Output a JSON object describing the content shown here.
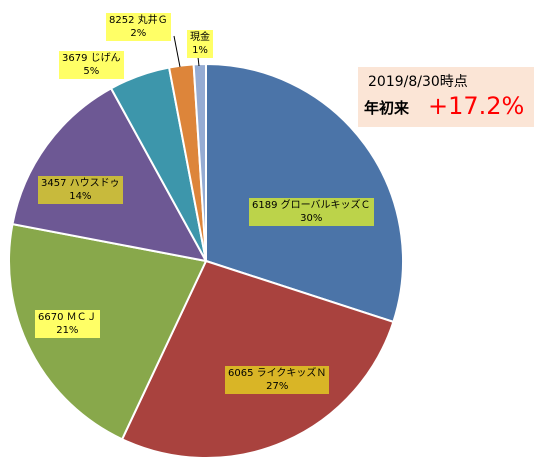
{
  "chart_data": {
    "type": "pie",
    "slices": [
      {
        "name": "6189 グローバルキッズＣ",
        "value": 30,
        "label": "30%",
        "color": "#4b74a8"
      },
      {
        "name": "6065 ライクキッズＮ",
        "value": 27,
        "label": "27%",
        "color": "#a9423e"
      },
      {
        "name": "6670 ＭＣＪ",
        "value": 21,
        "label": "21%",
        "color": "#88a84b"
      },
      {
        "name": "3457 ハウスドゥ",
        "value": 14,
        "label": "14%",
        "color": "#6d5894"
      },
      {
        "name": "3679 じげん",
        "value": 5,
        "label": "5%",
        "color": "#3d96ab"
      },
      {
        "name": "8252 丸井Ｇ",
        "value": 2,
        "label": "2%",
        "color": "#dd853a"
      },
      {
        "name": "現金",
        "value": 1,
        "label": "1%",
        "color": "#96acd3"
      }
    ],
    "label_colors": [
      "#bcd34a",
      "#d9b526",
      "#ffff66",
      "#c8ba3c",
      "#ffff66",
      "#ffff66",
      "#ffff66"
    ]
  },
  "info": {
    "date": "2019/8/30時点",
    "label": "年初来",
    "value": "+17.2%"
  }
}
